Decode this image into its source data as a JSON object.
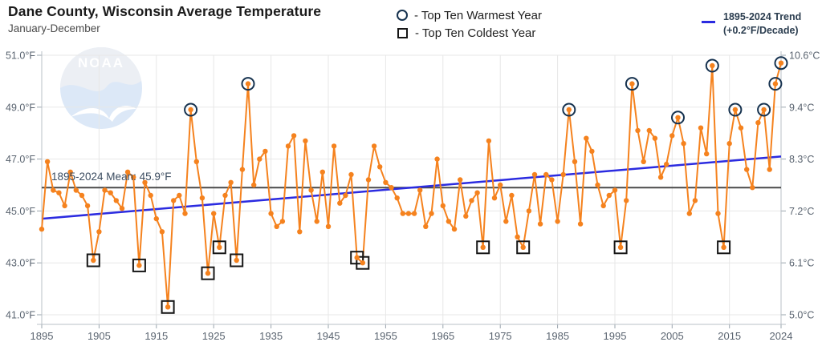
{
  "header": {
    "title": "Dane County, Wisconsin Average Temperature",
    "subtitle": "January-December"
  },
  "legend": {
    "warmest": "- Top Ten Warmest Year",
    "coldest": "- Top Ten Coldest Year",
    "trend_line1": "1895-2024 Trend",
    "trend_line2": "(+0.2°F/Decade)"
  },
  "watermark": {
    "text": "NOAA"
  },
  "chart_data": {
    "type": "line",
    "title": "Dane County, Wisconsin Average Temperature",
    "subtitle": "January-December",
    "x": [
      1895,
      1896,
      1897,
      1898,
      1899,
      1900,
      1901,
      1902,
      1903,
      1904,
      1905,
      1906,
      1907,
      1908,
      1909,
      1910,
      1911,
      1912,
      1913,
      1914,
      1915,
      1916,
      1917,
      1918,
      1919,
      1920,
      1921,
      1922,
      1923,
      1924,
      1925,
      1926,
      1927,
      1928,
      1929,
      1930,
      1931,
      1932,
      1933,
      1934,
      1935,
      1936,
      1937,
      1938,
      1939,
      1940,
      1941,
      1942,
      1943,
      1944,
      1945,
      1946,
      1947,
      1948,
      1949,
      1950,
      1951,
      1952,
      1953,
      1954,
      1955,
      1956,
      1957,
      1958,
      1959,
      1960,
      1961,
      1962,
      1963,
      1964,
      1965,
      1966,
      1967,
      1968,
      1969,
      1970,
      1971,
      1972,
      1973,
      1974,
      1975,
      1976,
      1977,
      1978,
      1979,
      1980,
      1981,
      1982,
      1983,
      1984,
      1985,
      1986,
      1987,
      1988,
      1989,
      1990,
      1991,
      1992,
      1993,
      1994,
      1995,
      1996,
      1997,
      1998,
      1999,
      2000,
      2001,
      2002,
      2003,
      2004,
      2005,
      2006,
      2007,
      2008,
      2009,
      2010,
      2011,
      2012,
      2013,
      2014,
      2015,
      2016,
      2017,
      2018,
      2019,
      2020,
      2021,
      2022,
      2023,
      2024
    ],
    "values": [
      44.3,
      46.9,
      45.8,
      45.7,
      45.2,
      46.5,
      45.8,
      45.6,
      45.2,
      43.1,
      44.2,
      45.8,
      45.7,
      45.4,
      45.1,
      46.5,
      46.3,
      42.9,
      46.1,
      45.6,
      44.7,
      44.2,
      41.3,
      45.4,
      45.6,
      44.9,
      48.9,
      46.9,
      45.5,
      42.6,
      44.9,
      43.6,
      45.6,
      46.1,
      43.1,
      46.6,
      49.9,
      46.0,
      47.0,
      47.3,
      44.9,
      44.4,
      44.6,
      47.5,
      47.9,
      44.2,
      47.7,
      45.8,
      44.6,
      46.5,
      44.4,
      47.5,
      45.3,
      45.6,
      46.4,
      43.2,
      43.0,
      46.2,
      47.5,
      46.7,
      46.1,
      45.9,
      45.5,
      44.9,
      44.9,
      44.9,
      45.8,
      44.4,
      44.9,
      47.0,
      45.2,
      44.6,
      44.3,
      46.2,
      44.8,
      45.4,
      45.7,
      43.6,
      47.7,
      45.5,
      46.0,
      44.6,
      45.6,
      44.0,
      43.6,
      45.0,
      46.4,
      44.5,
      46.4,
      46.2,
      44.6,
      46.4,
      48.9,
      46.9,
      44.5,
      47.8,
      47.3,
      46.0,
      45.2,
      45.6,
      45.8,
      43.6,
      45.4,
      49.9,
      48.1,
      46.9,
      48.1,
      47.8,
      46.3,
      46.8,
      47.9,
      48.6,
      47.6,
      44.9,
      45.4,
      48.2,
      47.2,
      50.6,
      44.9,
      43.6,
      47.6,
      48.9,
      48.2,
      46.6,
      45.9,
      48.4,
      48.9,
      46.6,
      49.9,
      50.7
    ],
    "top_ten_warmest_years": [
      1921,
      1931,
      1987,
      1998,
      2006,
      2012,
      2016,
      2021,
      2023,
      2024
    ],
    "top_ten_coldest_years": [
      1904,
      1912,
      1917,
      1924,
      1926,
      1929,
      1950,
      1951,
      1972,
      1979,
      1996,
      2014
    ],
    "mean_line": {
      "value": 45.9,
      "label": "1895-2024 Mean: 45.9°F"
    },
    "trend": {
      "start_value": 44.7,
      "end_value": 47.1,
      "label": "1895-2024 Trend (+0.2°F/Decade)"
    },
    "ylim_f": [
      41.0,
      51.0
    ],
    "yticks_f": [
      "51.0°F",
      "49.0°F",
      "47.0°F",
      "45.0°F",
      "43.0°F",
      "41.0°F"
    ],
    "yticks_c": [
      "10.6°C",
      "9.4°C",
      "8.3°C",
      "7.2°C",
      "6.1°C",
      "5.0°C"
    ],
    "xticks": [
      1895,
      1905,
      1915,
      1925,
      1935,
      1945,
      1955,
      1965,
      1975,
      1985,
      1995,
      2005,
      2015,
      2024
    ],
    "grid": true,
    "legend_position": "top",
    "colors": {
      "series": "#f5821e",
      "trend": "#2b2be0",
      "mean": "#4a4a4a",
      "warm_marker": "#16324f",
      "cold_marker": "#161616",
      "grid": "#e7e7e7",
      "axis": "#b9c0c7",
      "tick": "#9aa4ad"
    }
  }
}
